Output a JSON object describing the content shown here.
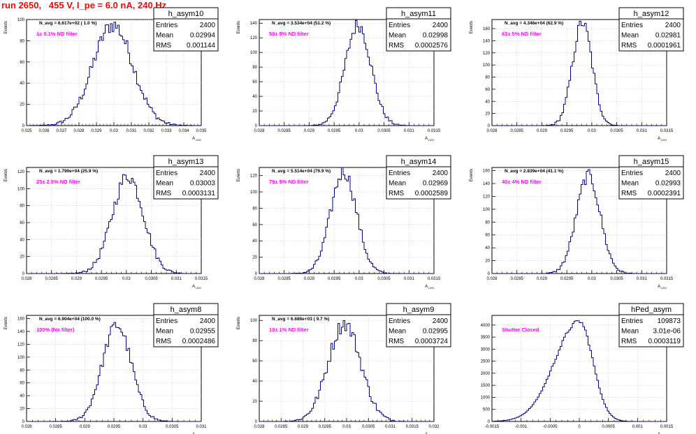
{
  "page_title": "run 2650,   455 V, I_pe = 6.0 nA, 240 Hz",
  "colors": {
    "histogram": "#00008b",
    "title": "#ff0000",
    "annotation": "#ff00ff",
    "grid": "#bbbbbb"
  },
  "chart_data": [
    {
      "type": "histogram",
      "name": "h_asym10",
      "xlabel": "A_LED",
      "ylabel": "Events",
      "xlim": [
        0.025,
        0.035
      ],
      "ylim": [
        0,
        100
      ],
      "xticks": [
        "0.025",
        "0.026",
        "0.027",
        "0.028",
        "0.029",
        "0.03",
        "0.031",
        "0.032",
        "0.033",
        "0.034",
        "0.035"
      ],
      "yticks": [
        "0",
        "20",
        "40",
        "60",
        "80",
        "100"
      ],
      "stats": {
        "entries": "2400",
        "mean": "0.02994",
        "rms": "0.001144"
      },
      "navg": "N_avg = 6.617e+02 ( 1.0 %)",
      "annotation": "1± 0.1% ND filter",
      "shape": {
        "mean": 0.02994,
        "rms": 0.001144,
        "peak": 95
      }
    },
    {
      "type": "histogram",
      "name": "h_asym11",
      "xlabel": "A_LED",
      "ylabel": "Events",
      "xlim": [
        0.028,
        0.0315
      ],
      "ylim": [
        0,
        145
      ],
      "xticks": [
        "0.028",
        "0.0285",
        "0.029",
        "0.0295",
        "0.03",
        "0.0305",
        "0.031",
        "0.0315"
      ],
      "yticks": [
        "0",
        "20",
        "40",
        "60",
        "80",
        "100",
        "120",
        "140"
      ],
      "stats": {
        "entries": "2400",
        "mean": "0.02998",
        "rms": "0.0002576"
      },
      "navg": "N_avg = 3.534e+04 (51.2 %)",
      "annotation": "50± 5% ND filter",
      "shape": {
        "mean": 0.02998,
        "rms": 0.0002576,
        "peak": 138
      }
    },
    {
      "type": "histogram",
      "name": "h_asym12",
      "xlabel": "A_LED",
      "ylabel": "Events",
      "xlim": [
        0.028,
        0.0315
      ],
      "ylim": [
        0,
        175
      ],
      "xticks": [
        "0.028",
        "0.0285",
        "0.029",
        "0.0295",
        "0.03",
        "0.0305",
        "0.031",
        "0.0315"
      ],
      "yticks": [
        "0",
        "20",
        "40",
        "60",
        "80",
        "100",
        "120",
        "140",
        "160"
      ],
      "stats": {
        "entries": "2400",
        "mean": "0.02981",
        "rms": "0.0001961"
      },
      "navg": "N_avg = 4.346e+04 (62.9 %)",
      "annotation": "63± 5% ND filter",
      "shape": {
        "mean": 0.02981,
        "rms": 0.0001961,
        "peak": 170
      }
    },
    {
      "type": "histogram",
      "name": "h_asym13",
      "xlabel": "A_LED",
      "ylabel": "Events",
      "xlim": [
        0.028,
        0.0315
      ],
      "ylim": [
        0,
        125
      ],
      "xticks": [
        "0.028",
        "0.0285",
        "0.029",
        "0.0295",
        "0.03",
        "0.0305",
        "0.031",
        "0.0315"
      ],
      "yticks": [
        "0",
        "20",
        "40",
        "60",
        "80",
        "100",
        "120"
      ],
      "stats": {
        "entries": "2400",
        "mean": "0.03003",
        "rms": "0.0003131"
      },
      "navg": "N_avg = 1.790e+04 (25.9 %)",
      "annotation": "25± 2.5% ND filter",
      "shape": {
        "mean": 0.03003,
        "rms": 0.0003131,
        "peak": 115
      }
    },
    {
      "type": "histogram",
      "name": "h_asym14",
      "xlabel": "A_LED",
      "ylabel": "Events",
      "xlim": [
        0.028,
        0.0315
      ],
      "ylim": [
        0,
        130
      ],
      "xticks": [
        "0.028",
        "0.0285",
        "0.029",
        "0.0295",
        "0.03",
        "0.0305",
        "0.031",
        "0.0315"
      ],
      "yticks": [
        "0",
        "20",
        "40",
        "60",
        "80",
        "100",
        "120"
      ],
      "stats": {
        "entries": "2400",
        "mean": "0.02969",
        "rms": "0.0002589"
      },
      "navg": "N_avg = 5.514e+04 (79.9 %)",
      "annotation": "79± 5% ND filter",
      "shape": {
        "mean": 0.02969,
        "rms": 0.0002589,
        "peak": 125
      }
    },
    {
      "type": "histogram",
      "name": "h_asym15",
      "xlabel": "A_LED",
      "ylabel": "Events",
      "xlim": [
        0.028,
        0.0315
      ],
      "ylim": [
        0,
        165
      ],
      "xticks": [
        "0.028",
        "0.0285",
        "0.029",
        "0.0295",
        "0.03",
        "0.0305",
        "0.031",
        "0.0315"
      ],
      "yticks": [
        "0",
        "20",
        "40",
        "60",
        "80",
        "100",
        "120",
        "140",
        "160"
      ],
      "stats": {
        "entries": "2400",
        "mean": "0.02993",
        "rms": "0.0002391"
      },
      "navg": "N_avg = 2.839e+04 (41.1 %)",
      "annotation": "40± 4% ND filter",
      "shape": {
        "mean": 0.02993,
        "rms": 0.0002391,
        "peak": 152
      }
    },
    {
      "type": "histogram",
      "name": "h_asym8",
      "xlabel": "A_LED",
      "ylabel": "Events",
      "xlim": [
        0.028,
        0.031
      ],
      "ylim": [
        0,
        165
      ],
      "xticks": [
        "0.028",
        "0.0285",
        "0.029",
        "0.0295",
        "0.03",
        "0.0305",
        "0.031"
      ],
      "yticks": [
        "0",
        "20",
        "40",
        "60",
        "80",
        "100",
        "120",
        "140",
        "160"
      ],
      "stats": {
        "entries": "2400",
        "mean": "0.02955",
        "rms": "0.0002486"
      },
      "navg": "N_avg = 6.904e+04 (100.0 %)",
      "annotation": "100% (No filter)",
      "shape": {
        "mean": 0.02955,
        "rms": 0.0002486,
        "peak": 150
      }
    },
    {
      "type": "histogram",
      "name": "h_asym9",
      "xlabel": "A_LED",
      "ylabel": "Events",
      "xlim": [
        0.028,
        0.032
      ],
      "ylim": [
        0,
        105
      ],
      "xticks": [
        "0.028",
        "0.0285",
        "0.029",
        "0.0295",
        "0.03",
        "0.0305",
        "0.031",
        "0.0315",
        "0.032"
      ],
      "yticks": [
        "0",
        "20",
        "40",
        "60",
        "80",
        "100"
      ],
      "stats": {
        "entries": "2400",
        "mean": "0.02995",
        "rms": "0.0003724"
      },
      "navg": "N_avg = 6.686e+03 ( 9.7 %)",
      "annotation": "10± 1% ND filter",
      "shape": {
        "mean": 0.02995,
        "rms": 0.0003724,
        "peak": 97
      }
    },
    {
      "type": "histogram",
      "name": "hPed_asym",
      "xlabel": "A_LED",
      "ylabel": "",
      "xlim": [
        -0.0015,
        0.0015
      ],
      "ylim": [
        0,
        4400
      ],
      "xticks": [
        "-0.0015",
        "-0.001",
        "-0.0005",
        "0",
        "0.0005",
        "0.001",
        "0.0015"
      ],
      "yticks": [
        "0",
        "500",
        "1000",
        "1500",
        "2000",
        "2500",
        "3000",
        "3500",
        "4000"
      ],
      "stats": {
        "entries": "109873",
        "mean": "3.01e-06",
        "rms": "0.0003119"
      },
      "navg": "",
      "annotation": "Shutter Closed",
      "shape": {
        "mean": 0.0,
        "rms": 0.0003119,
        "peak": 4150
      }
    }
  ],
  "stats_labels": {
    "entries": "Entries",
    "mean": "Mean",
    "rms": "RMS"
  }
}
